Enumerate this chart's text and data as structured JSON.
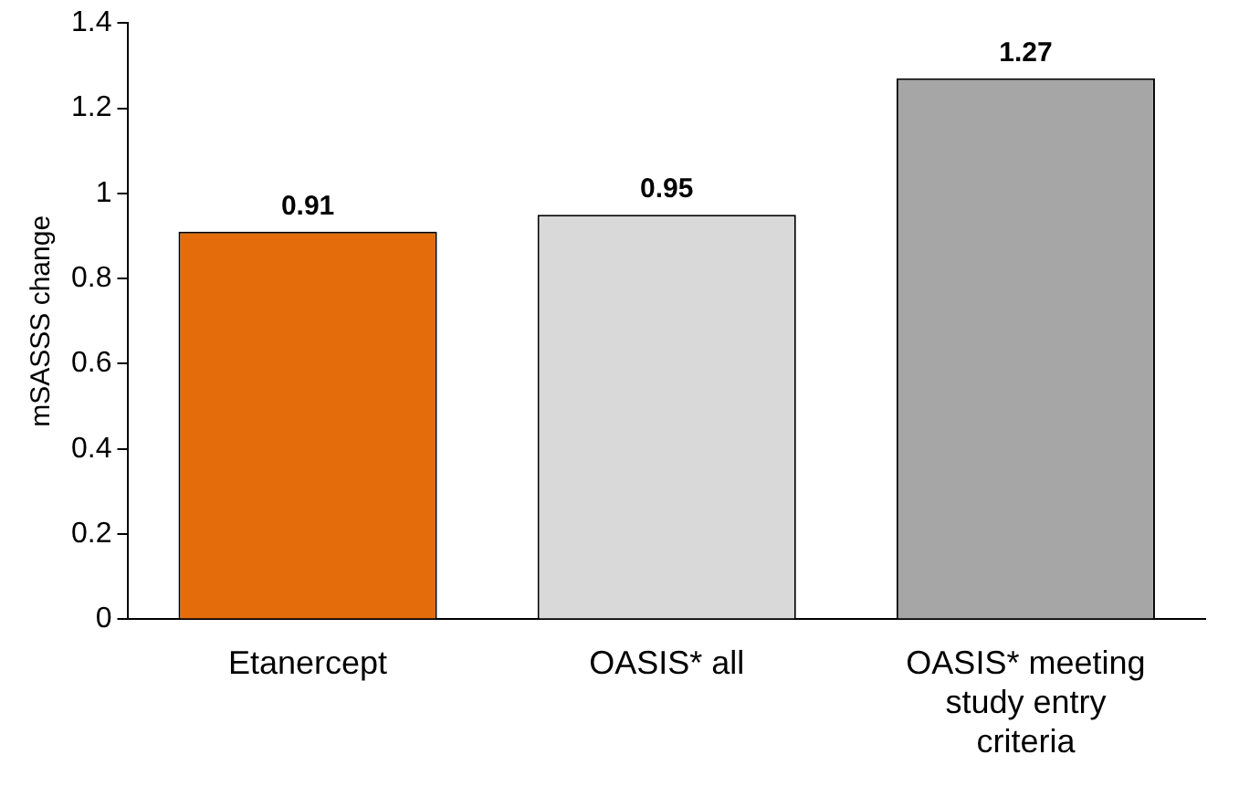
{
  "chart_data": {
    "type": "bar",
    "ylabel": "mSASSS change",
    "categories": [
      "Etanercept",
      "OASIS* all",
      "OASIS* meeting study entry criteria"
    ],
    "values": [
      0.91,
      0.95,
      1.27
    ],
    "colors": [
      "#e46c0a",
      "#d9d9d9",
      "#a6a6a6"
    ],
    "ylim": [
      0,
      1.4
    ],
    "yticks": [
      0,
      0.2,
      0.4,
      0.6,
      0.8,
      1,
      1.2,
      1.4
    ],
    "data_labels": true,
    "grid": false,
    "legend": false
  }
}
